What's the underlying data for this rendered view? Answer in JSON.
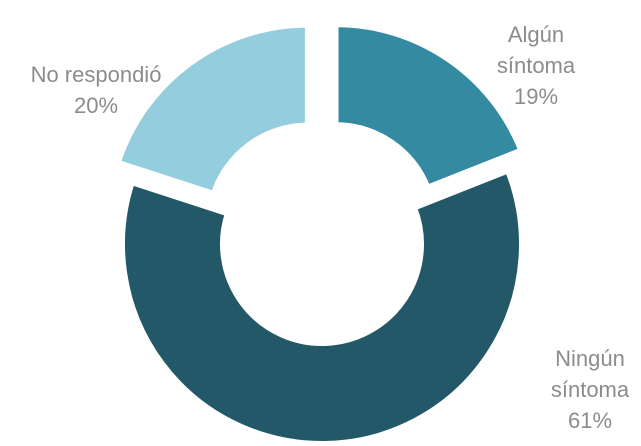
{
  "chart_data": {
    "type": "pie",
    "donut": true,
    "exploded": true,
    "slices": [
      {
        "label_lines": [
          "Algún",
          "síntoma"
        ],
        "value": 19,
        "value_label": "19%",
        "color": "#338aa1"
      },
      {
        "label_lines": [
          "Ningún",
          "síntoma"
        ],
        "value": 61,
        "value_label": "61%",
        "color": "#235868"
      },
      {
        "label_lines": [
          "No respondió"
        ],
        "value": 20,
        "value_label": "20%",
        "color": "#94cddd"
      }
    ]
  }
}
